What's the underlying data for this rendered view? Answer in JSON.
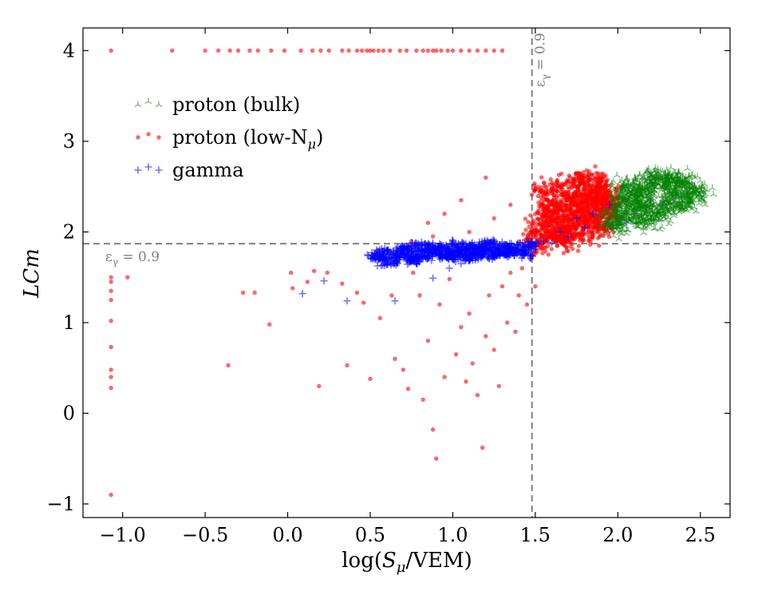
{
  "chart_data": {
    "type": "scatter",
    "title": "",
    "xlabel_parts": {
      "prefix": "log(",
      "var": "S",
      "sub": "μ",
      "suffix": "/VEM)"
    },
    "ylabel": "LCm",
    "xlim": [
      -1.24,
      2.68
    ],
    "ylim": [
      -1.15,
      4.25
    ],
    "xticks": [
      -1.0,
      -0.5,
      0.0,
      0.5,
      1.0,
      1.5,
      2.0,
      2.5
    ],
    "xtick_labels": [
      "−1.0",
      "−0.5",
      "0.0",
      "0.5",
      "1.0",
      "1.5",
      "2.0",
      "2.5"
    ],
    "yticks": [
      -1,
      0,
      1,
      2,
      3,
      4
    ],
    "ytick_labels": [
      "−1",
      "0",
      "1",
      "2",
      "3",
      "4"
    ],
    "thresholds": {
      "x": 1.48,
      "y": 1.87,
      "color": "#808080",
      "x_label": "εγ = 0.9",
      "y_label": "εγ = 0.9"
    },
    "legend": {
      "placement": "top-left",
      "entries": [
        {
          "series": "proton_bulk",
          "label": "proton (bulk)"
        },
        {
          "series": "proton_low",
          "label_prefix": "proton (low-N",
          "label_sub": "μ",
          "label_suffix": ")"
        },
        {
          "series": "gamma",
          "label": "gamma"
        }
      ]
    },
    "series": [
      {
        "name": "proton (bulk)",
        "id": "proton_bulk",
        "marker": "tri_up",
        "color": "#008000",
        "note": "dense cluster, approx. x 1.95–2.5, LCm 2.05–2.62",
        "points": [
          [
            1.97,
            2.12
          ],
          [
            2.0,
            2.2
          ],
          [
            2.02,
            2.3
          ],
          [
            2.05,
            2.15
          ],
          [
            2.08,
            2.4
          ],
          [
            2.1,
            2.25
          ],
          [
            2.12,
            2.35
          ],
          [
            2.15,
            2.1
          ],
          [
            2.18,
            2.45
          ],
          [
            2.2,
            2.3
          ],
          [
            2.22,
            2.55
          ],
          [
            2.25,
            2.2
          ],
          [
            2.28,
            2.5
          ],
          [
            2.3,
            2.35
          ],
          [
            2.32,
            2.6
          ],
          [
            2.35,
            2.45
          ],
          [
            2.38,
            2.3
          ],
          [
            2.4,
            2.55
          ],
          [
            2.42,
            2.4
          ],
          [
            2.45,
            2.5
          ],
          [
            2.47,
            2.42
          ],
          [
            1.99,
            2.05
          ],
          [
            2.04,
            2.5
          ],
          [
            2.16,
            2.58
          ],
          [
            2.26,
            2.62
          ],
          [
            2.36,
            2.58
          ],
          [
            2.44,
            2.35
          ],
          [
            2.1,
            2.48
          ],
          [
            2.2,
            2.15
          ],
          [
            2.3,
            2.25
          ],
          [
            2.03,
            2.38
          ],
          [
            2.13,
            2.28
          ]
        ]
      },
      {
        "name": "proton (low-Nμ)",
        "id": "proton_low",
        "marker": "circle",
        "color": "#ff0000",
        "note": "main cloud concentrated near x 1.5–1.95, LCm 1.9–2.4; scattered tail at lower x",
        "points": [
          [
            -1.07,
            4.0
          ],
          [
            -0.7,
            4.0
          ],
          [
            -0.5,
            4.0
          ],
          [
            -0.42,
            4.0
          ],
          [
            -0.35,
            4.0
          ],
          [
            -0.3,
            4.0
          ],
          [
            -0.23,
            4.0
          ],
          [
            -0.18,
            4.0
          ],
          [
            -0.1,
            4.0
          ],
          [
            -0.02,
            4.0
          ],
          [
            0.08,
            4.0
          ],
          [
            0.15,
            4.0
          ],
          [
            0.2,
            4.0
          ],
          [
            0.25,
            4.0
          ],
          [
            0.33,
            4.0
          ],
          [
            0.37,
            4.0
          ],
          [
            0.42,
            4.0
          ],
          [
            0.45,
            4.0
          ],
          [
            0.48,
            4.0
          ],
          [
            0.5,
            4.0
          ],
          [
            0.52,
            4.0
          ],
          [
            0.55,
            4.0
          ],
          [
            0.58,
            4.0
          ],
          [
            0.62,
            4.0
          ],
          [
            0.68,
            4.0
          ],
          [
            0.72,
            4.0
          ],
          [
            0.78,
            4.0
          ],
          [
            0.82,
            4.0
          ],
          [
            0.85,
            4.0
          ],
          [
            0.88,
            4.0
          ],
          [
            0.9,
            4.0
          ],
          [
            0.93,
            4.0
          ],
          [
            0.97,
            4.0
          ],
          [
            1.0,
            4.0
          ],
          [
            1.05,
            4.0
          ],
          [
            1.1,
            4.0
          ],
          [
            1.15,
            4.0
          ],
          [
            1.2,
            4.0
          ],
          [
            1.25,
            4.0
          ],
          [
            1.3,
            4.0
          ],
          [
            -1.07,
            1.5
          ],
          [
            -1.07,
            1.45
          ],
          [
            -1.07,
            1.35
          ],
          [
            -1.07,
            1.25
          ],
          [
            -1.07,
            1.02
          ],
          [
            -1.07,
            0.73
          ],
          [
            -1.07,
            0.48
          ],
          [
            -1.07,
            0.4
          ],
          [
            -1.07,
            0.28
          ],
          [
            -1.07,
            -0.9
          ],
          [
            -0.97,
            1.5
          ],
          [
            -0.36,
            0.53
          ],
          [
            -0.27,
            1.33
          ],
          [
            -0.2,
            1.33
          ],
          [
            -0.11,
            0.98
          ],
          [
            0.02,
            1.55
          ],
          [
            0.03,
            1.38
          ],
          [
            0.12,
            1.45
          ],
          [
            0.16,
            1.57
          ],
          [
            0.19,
            0.3
          ],
          [
            0.24,
            1.55
          ],
          [
            0.33,
            1.43
          ],
          [
            0.36,
            0.53
          ],
          [
            0.42,
            1.33
          ],
          [
            0.46,
            1.22
          ],
          [
            0.5,
            0.38
          ],
          [
            0.56,
            1.05
          ],
          [
            0.63,
            1.3
          ],
          [
            0.65,
            0.6
          ],
          [
            0.7,
            0.48
          ],
          [
            0.73,
            0.27
          ],
          [
            0.76,
            1.55
          ],
          [
            0.8,
            1.3
          ],
          [
            0.82,
            0.15
          ],
          [
            0.85,
            0.8
          ],
          [
            0.88,
            -0.18
          ],
          [
            0.9,
            -0.5
          ],
          [
            0.92,
            1.2
          ],
          [
            0.95,
            0.4
          ],
          [
            0.98,
            1.48
          ],
          [
            1.02,
            0.65
          ],
          [
            1.05,
            0.95
          ],
          [
            1.08,
            0.35
          ],
          [
            1.1,
            1.1
          ],
          [
            1.12,
            0.55
          ],
          [
            1.15,
            0.2
          ],
          [
            1.18,
            -0.38
          ],
          [
            1.2,
            0.85
          ],
          [
            1.22,
            1.3
          ],
          [
            1.25,
            0.7
          ],
          [
            1.28,
            0.3
          ],
          [
            1.3,
            1.4
          ],
          [
            1.33,
            1.0
          ],
          [
            1.35,
            1.55
          ],
          [
            1.38,
            0.9
          ],
          [
            1.4,
            1.3
          ],
          [
            1.42,
            1.6
          ],
          [
            1.45,
            1.2
          ],
          [
            1.47,
            1.7
          ],
          [
            1.5,
            1.4
          ],
          [
            1.5,
            1.95
          ],
          [
            1.55,
            2.1
          ],
          [
            1.58,
            1.75
          ],
          [
            1.6,
            2.3
          ],
          [
            1.62,
            2.0
          ],
          [
            1.65,
            2.25
          ],
          [
            1.68,
            1.9
          ],
          [
            1.7,
            2.4
          ],
          [
            1.72,
            2.05
          ],
          [
            1.75,
            2.5
          ],
          [
            1.77,
            2.2
          ],
          [
            1.8,
            2.35
          ],
          [
            1.82,
            2.0
          ],
          [
            1.85,
            2.45
          ],
          [
            1.87,
            2.15
          ],
          [
            1.9,
            2.3
          ],
          [
            1.92,
            2.05
          ],
          [
            1.95,
            2.2
          ],
          [
            1.55,
            2.45
          ],
          [
            1.6,
            1.95
          ],
          [
            1.65,
            2.5
          ],
          [
            1.7,
            2.15
          ],
          [
            1.78,
            2.6
          ],
          [
            1.84,
            2.25
          ],
          [
            1.88,
            2.55
          ],
          [
            1.93,
            2.4
          ],
          [
            1.57,
            2.2
          ],
          [
            1.67,
            2.05
          ],
          [
            1.73,
            2.3
          ],
          [
            1.81,
            2.1
          ],
          [
            1.86,
            2.35
          ],
          [
            1.52,
            1.85
          ],
          [
            1.63,
            2.15
          ],
          [
            1.74,
            1.95
          ],
          [
            1.9,
            2.5
          ],
          [
            1.97,
            2.3
          ],
          [
            1.2,
            2.6
          ],
          [
            1.05,
            2.35
          ],
          [
            0.95,
            2.2
          ],
          [
            1.1,
            2.0
          ],
          [
            0.88,
            1.95
          ],
          [
            0.75,
            1.9
          ],
          [
            0.85,
            2.1
          ],
          [
            1.25,
            2.15
          ],
          [
            1.35,
            2.3
          ]
        ]
      },
      {
        "name": "gamma",
        "id": "gamma",
        "marker": "plus",
        "color": "#0000ff",
        "note": "dense band near x 0.55–1.45, LCm 1.7–1.9, plus scattered points",
        "points": [
          [
            0.09,
            1.32
          ],
          [
            0.22,
            1.46
          ],
          [
            0.36,
            1.24
          ],
          [
            0.54,
            1.73
          ],
          [
            0.56,
            1.72
          ],
          [
            0.62,
            1.66
          ],
          [
            0.6,
            1.78
          ],
          [
            0.65,
            1.24
          ],
          [
            0.68,
            1.75
          ],
          [
            0.7,
            1.82
          ],
          [
            0.72,
            1.7
          ],
          [
            0.75,
            1.78
          ],
          [
            0.78,
            1.68
          ],
          [
            0.8,
            1.85
          ],
          [
            0.82,
            1.72
          ],
          [
            0.85,
            1.8
          ],
          [
            0.88,
            1.49
          ],
          [
            0.9,
            1.77
          ],
          [
            0.92,
            1.83
          ],
          [
            0.95,
            1.74
          ],
          [
            0.98,
            1.79
          ],
          [
            1.0,
            1.72
          ],
          [
            1.02,
            1.86
          ],
          [
            1.05,
            1.76
          ],
          [
            1.08,
            1.8
          ],
          [
            1.1,
            1.7
          ],
          [
            1.12,
            1.84
          ],
          [
            1.15,
            1.75
          ],
          [
            1.18,
            1.82
          ],
          [
            1.2,
            1.78
          ],
          [
            1.22,
            1.88
          ],
          [
            1.25,
            1.74
          ],
          [
            1.28,
            1.81
          ],
          [
            1.3,
            1.76
          ],
          [
            1.33,
            1.85
          ],
          [
            1.36,
            1.78
          ],
          [
            1.4,
            1.82
          ],
          [
            1.43,
            1.76
          ],
          [
            1.46,
            1.86
          ],
          [
            1.5,
            1.84
          ],
          [
            1.55,
            1.9
          ],
          [
            1.6,
            1.88
          ],
          [
            1.65,
            2.0
          ],
          [
            1.7,
            1.95
          ],
          [
            1.75,
            2.15
          ],
          [
            1.8,
            2.05
          ],
          [
            1.85,
            2.2
          ],
          [
            1.95,
            2.3
          ],
          [
            2.0,
            2.15
          ],
          [
            2.05,
            2.1
          ],
          [
            2.1,
            2.2
          ],
          [
            2.2,
            2.35
          ],
          [
            2.27,
            2.3
          ],
          [
            2.35,
            2.4
          ],
          [
            0.98,
            1.6
          ],
          [
            1.05,
            1.65
          ]
        ]
      }
    ]
  }
}
